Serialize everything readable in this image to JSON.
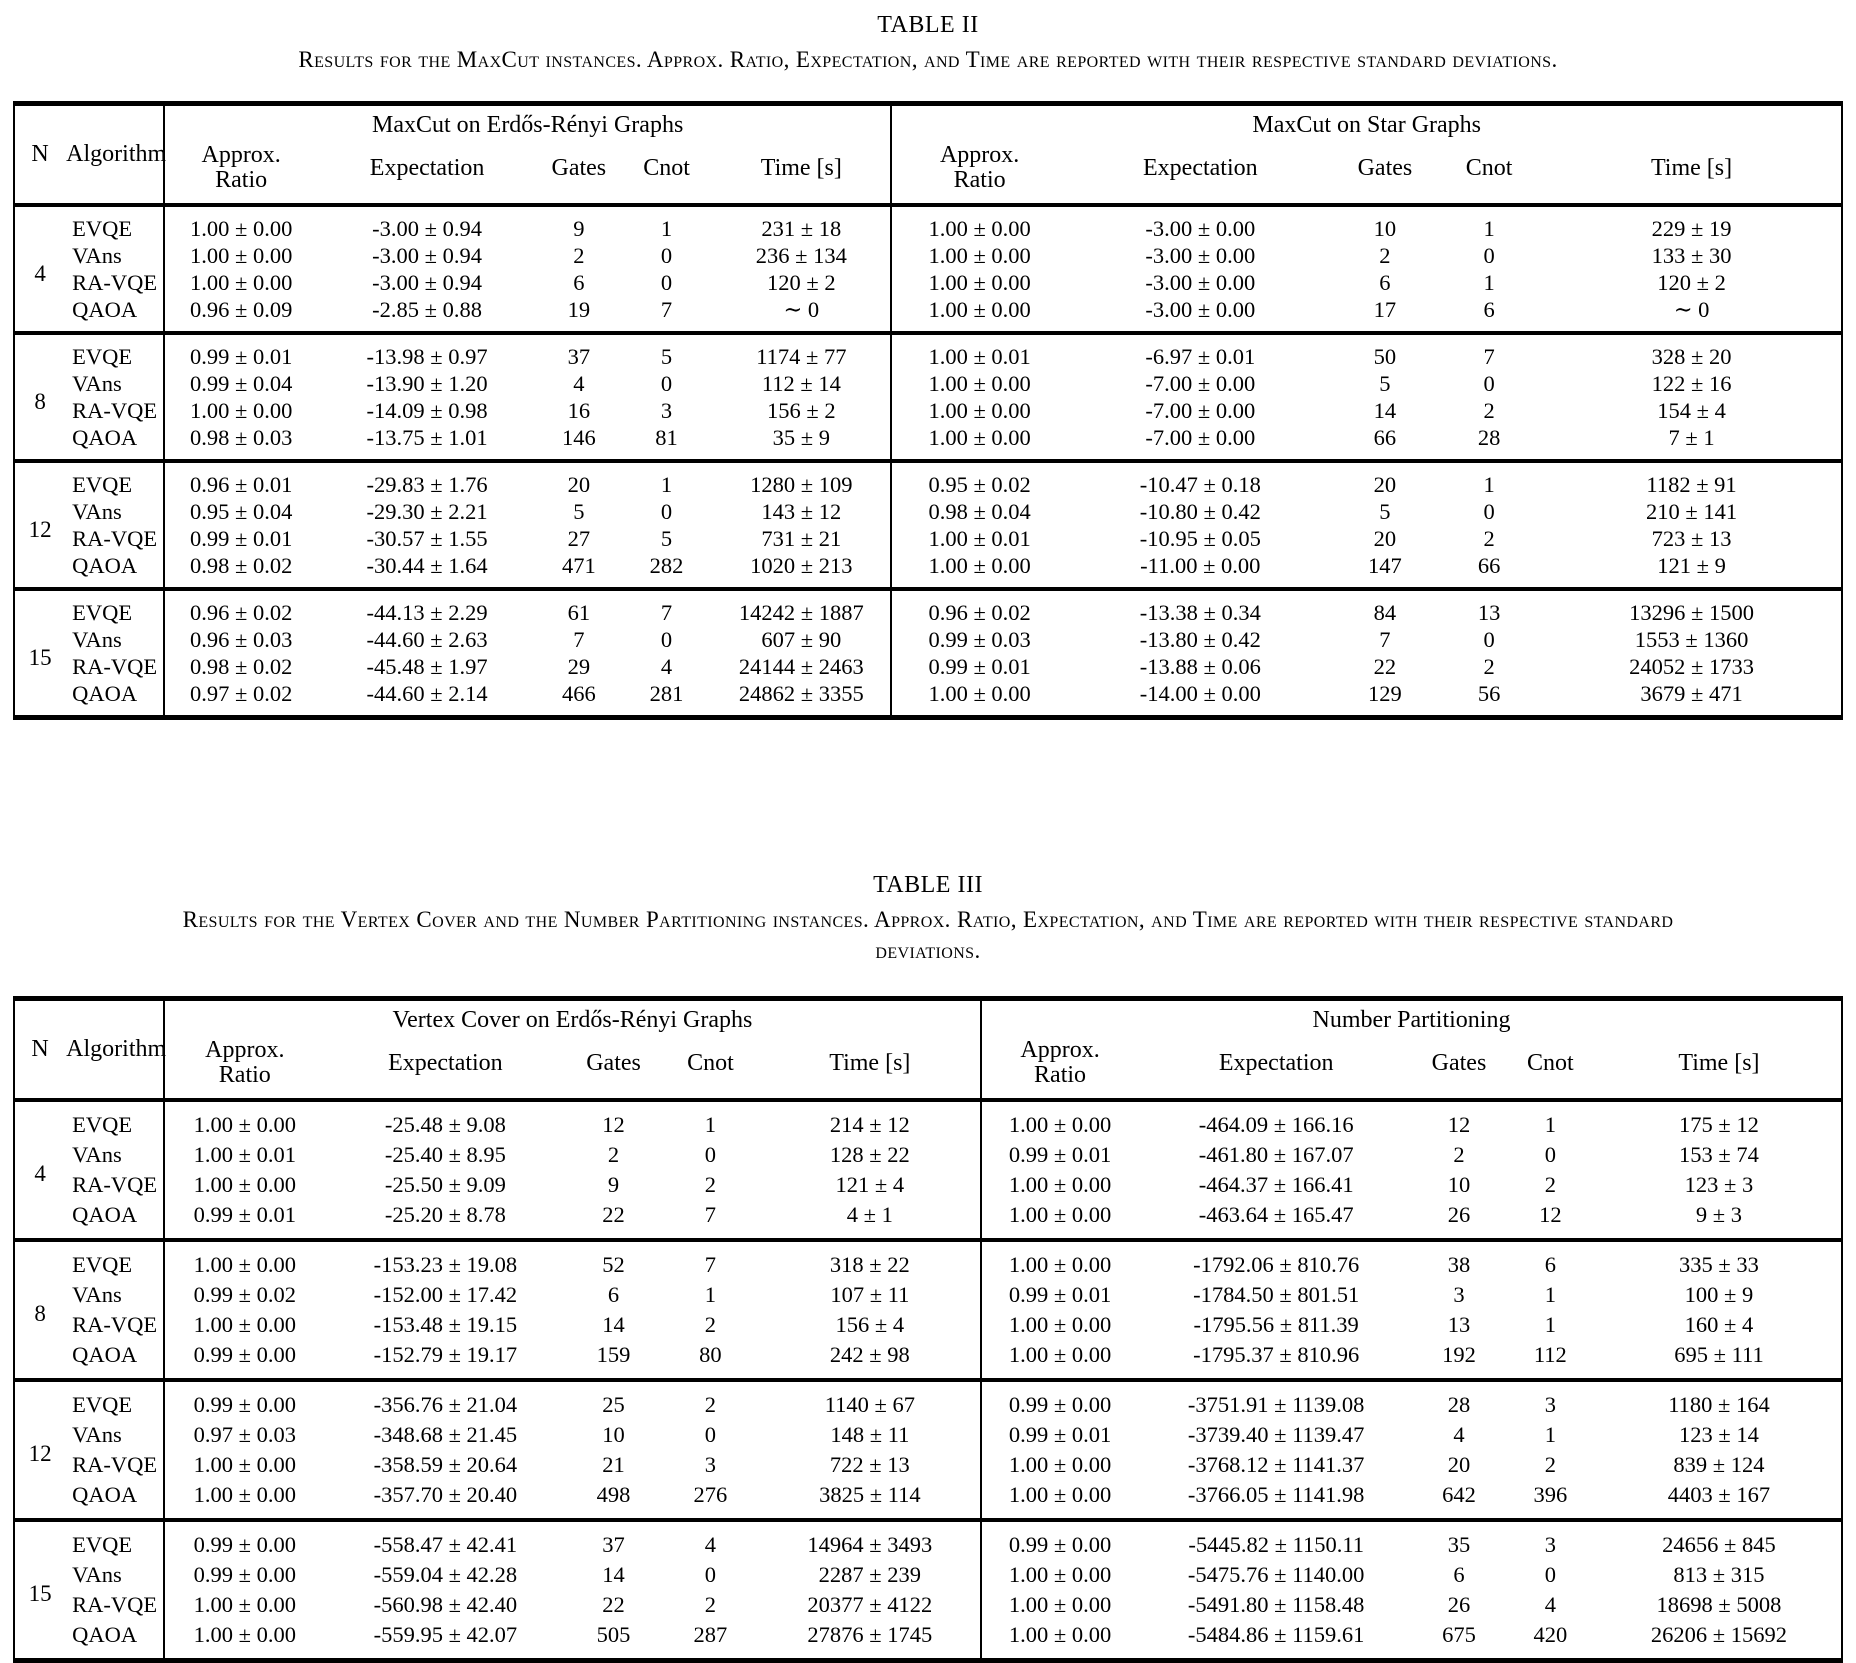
{
  "page": {
    "background": "#ffffff",
    "text_color": "#000000"
  },
  "tables": [
    {
      "label": "TABLE II",
      "caption": "Results for the MaxCut instances. Approx. Ratio, Expectation, and Time are reported with their respective standard deviations.",
      "headers": {
        "n": "N",
        "algorithm": "Algorithm",
        "approx_line1": "Approx.",
        "approx_line2": "Ratio",
        "expectation": "Expectation",
        "gates": "Gates",
        "cnot": "Cnot",
        "time": "Time [s]"
      },
      "groups": [
        {
          "title": "MaxCut on Erdős-Rényi Graphs"
        },
        {
          "title": "MaxCut on Star Graphs"
        }
      ],
      "blocks": [
        {
          "n": "4",
          "rows": [
            {
              "algorithm": "EVQE",
              "values": [
                "1.00 ± 0.00",
                "-3.00 ± 0.94",
                "9",
                "1",
                "231 ± 18",
                "1.00 ± 0.00",
                "-3.00 ± 0.00",
                "10",
                "1",
                "229 ± 19"
              ]
            },
            {
              "algorithm": "VAns",
              "values": [
                "1.00 ± 0.00",
                "-3.00 ± 0.94",
                "2",
                "0",
                "236 ± 134",
                "1.00 ± 0.00",
                "-3.00 ± 0.00",
                "2",
                "0",
                "133 ± 30"
              ]
            },
            {
              "algorithm": "RA-VQE",
              "values": [
                "1.00 ± 0.00",
                "-3.00 ± 0.94",
                "6",
                "0",
                "120 ± 2",
                "1.00 ± 0.00",
                "-3.00 ± 0.00",
                "6",
                "1",
                "120 ± 2"
              ]
            },
            {
              "algorithm": "QAOA",
              "values": [
                "0.96 ± 0.09",
                "-2.85 ± 0.88",
                "19",
                "7",
                "∼ 0",
                "1.00 ± 0.00",
                "-3.00 ± 0.00",
                "17",
                "6",
                "∼ 0"
              ]
            }
          ]
        },
        {
          "n": "8",
          "rows": [
            {
              "algorithm": "EVQE",
              "values": [
                "0.99 ± 0.01",
                "-13.98 ± 0.97",
                "37",
                "5",
                "1174 ± 77",
                "1.00 ± 0.01",
                "-6.97 ± 0.01",
                "50",
                "7",
                "328 ± 20"
              ]
            },
            {
              "algorithm": "VAns",
              "values": [
                "0.99 ± 0.04",
                "-13.90 ± 1.20",
                "4",
                "0",
                "112 ± 14",
                "1.00 ± 0.00",
                "-7.00 ± 0.00",
                "5",
                "0",
                "122 ± 16"
              ]
            },
            {
              "algorithm": "RA-VQE",
              "values": [
                "1.00 ± 0.00",
                "-14.09 ± 0.98",
                "16",
                "3",
                "156 ± 2",
                "1.00 ± 0.00",
                "-7.00 ± 0.00",
                "14",
                "2",
                "154 ± 4"
              ]
            },
            {
              "algorithm": "QAOA",
              "values": [
                "0.98 ± 0.03",
                "-13.75 ± 1.01",
                "146",
                "81",
                "35 ± 9",
                "1.00 ± 0.00",
                "-7.00 ± 0.00",
                "66",
                "28",
                "7 ± 1"
              ]
            }
          ]
        },
        {
          "n": "12",
          "rows": [
            {
              "algorithm": "EVQE",
              "values": [
                "0.96 ± 0.01",
                "-29.83 ± 1.76",
                "20",
                "1",
                "1280 ± 109",
                "0.95 ± 0.02",
                "-10.47 ± 0.18",
                "20",
                "1",
                "1182 ± 91"
              ]
            },
            {
              "algorithm": "VAns",
              "values": [
                "0.95 ± 0.04",
                "-29.30 ± 2.21",
                "5",
                "0",
                "143 ± 12",
                "0.98 ± 0.04",
                "-10.80 ± 0.42",
                "5",
                "0",
                "210 ± 141"
              ]
            },
            {
              "algorithm": "RA-VQE",
              "values": [
                "0.99 ± 0.01",
                "-30.57 ± 1.55",
                "27",
                "5",
                "731 ± 21",
                "1.00 ± 0.01",
                "-10.95 ± 0.05",
                "20",
                "2",
                "723 ± 13"
              ]
            },
            {
              "algorithm": "QAOA",
              "values": [
                "0.98 ± 0.02",
                "-30.44 ± 1.64",
                "471",
                "282",
                "1020 ± 213",
                "1.00 ± 0.00",
                "-11.00 ± 0.00",
                "147",
                "66",
                "121 ± 9"
              ]
            }
          ]
        },
        {
          "n": "15",
          "rows": [
            {
              "algorithm": "EVQE",
              "values": [
                "0.96 ± 0.02",
                "-44.13 ± 2.29",
                "61",
                "7",
                "14242 ± 1887",
                "0.96 ± 0.02",
                "-13.38 ± 0.34",
                "84",
                "13",
                "13296 ± 1500"
              ]
            },
            {
              "algorithm": "VAns",
              "values": [
                "0.96 ± 0.03",
                "-44.60 ± 2.63",
                "7",
                "0",
                "607 ± 90",
                "0.99 ± 0.03",
                "-13.80 ± 0.42",
                "7",
                "0",
                "1553 ± 1360"
              ]
            },
            {
              "algorithm": "RA-VQE",
              "values": [
                "0.98 ± 0.02",
                "-45.48 ± 1.97",
                "29",
                "4",
                "24144 ± 2463",
                "0.99 ± 0.01",
                "-13.88 ± 0.06",
                "22",
                "2",
                "24052 ± 1733"
              ]
            },
            {
              "algorithm": "QAOA",
              "values": [
                "0.97 ± 0.02",
                "-44.60 ± 2.14",
                "466",
                "281",
                "24862 ± 3355",
                "1.00 ± 0.00",
                "-14.00 ± 0.00",
                "129",
                "56",
                "3679 ± 471"
              ]
            }
          ]
        }
      ]
    },
    {
      "label": "TABLE III",
      "caption": "Results for the Vertex Cover and the Number Partitioning instances. Approx. Ratio, Expectation, and Time are reported with their respective standard deviations.",
      "headers": {
        "n": "N",
        "algorithm": "Algorithm",
        "approx_line1": "Approx.",
        "approx_line2": "Ratio",
        "expectation": "Expectation",
        "gates": "Gates",
        "cnot": "Cnot",
        "time": "Time [s]"
      },
      "groups": [
        {
          "title": "Vertex Cover on Erdős-Rényi Graphs"
        },
        {
          "title": "Number Partitioning"
        }
      ],
      "blocks": [
        {
          "n": "4",
          "rows": [
            {
              "algorithm": "EVQE",
              "values": [
                "1.00 ± 0.00",
                "-25.48 ± 9.08",
                "12",
                "1",
                "214 ± 12",
                "1.00 ± 0.00",
                "-464.09 ± 166.16",
                "12",
                "1",
                "175 ± 12"
              ]
            },
            {
              "algorithm": "VAns",
              "values": [
                "1.00 ± 0.01",
                "-25.40 ± 8.95",
                "2",
                "0",
                "128 ± 22",
                "0.99 ± 0.01",
                "-461.80 ± 167.07",
                "2",
                "0",
                "153 ± 74"
              ]
            },
            {
              "algorithm": "RA-VQE",
              "values": [
                "1.00 ± 0.00",
                "-25.50 ± 9.09",
                "9",
                "2",
                "121 ± 4",
                "1.00 ± 0.00",
                "-464.37 ± 166.41",
                "10",
                "2",
                "123 ± 3"
              ]
            },
            {
              "algorithm": "QAOA",
              "values": [
                "0.99 ± 0.01",
                "-25.20 ± 8.78",
                "22",
                "7",
                "4 ± 1",
                "1.00 ± 0.00",
                "-463.64 ± 165.47",
                "26",
                "12",
                "9 ± 3"
              ]
            }
          ]
        },
        {
          "n": "8",
          "rows": [
            {
              "algorithm": "EVQE",
              "values": [
                "1.00 ± 0.00",
                "-153.23 ± 19.08",
                "52",
                "7",
                "318 ± 22",
                "1.00 ± 0.00",
                "-1792.06 ± 810.76",
                "38",
                "6",
                "335 ± 33"
              ]
            },
            {
              "algorithm": "VAns",
              "values": [
                "0.99 ± 0.02",
                "-152.00 ± 17.42",
                "6",
                "1",
                "107 ± 11",
                "0.99 ± 0.01",
                "-1784.50 ± 801.51",
                "3",
                "1",
                "100 ± 9"
              ]
            },
            {
              "algorithm": "RA-VQE",
              "values": [
                "1.00 ± 0.00",
                "-153.48 ± 19.15",
                "14",
                "2",
                "156 ± 4",
                "1.00 ± 0.00",
                "-1795.56 ± 811.39",
                "13",
                "1",
                "160 ± 4"
              ]
            },
            {
              "algorithm": "QAOA",
              "values": [
                "0.99 ± 0.00",
                "-152.79 ± 19.17",
                "159",
                "80",
                "242 ± 98",
                "1.00 ± 0.00",
                "-1795.37 ± 810.96",
                "192",
                "112",
                "695 ± 111"
              ]
            }
          ]
        },
        {
          "n": "12",
          "rows": [
            {
              "algorithm": "EVQE",
              "values": [
                "0.99 ± 0.00",
                "-356.76 ± 21.04",
                "25",
                "2",
                "1140 ± 67",
                "0.99 ± 0.00",
                "-3751.91 ± 1139.08",
                "28",
                "3",
                "1180 ± 164"
              ]
            },
            {
              "algorithm": "VAns",
              "values": [
                "0.97 ± 0.03",
                "-348.68 ± 21.45",
                "10",
                "0",
                "148 ± 11",
                "0.99 ± 0.01",
                "-3739.40 ± 1139.47",
                "4",
                "1",
                "123 ± 14"
              ]
            },
            {
              "algorithm": "RA-VQE",
              "values": [
                "1.00 ± 0.00",
                "-358.59 ± 20.64",
                "21",
                "3",
                "722 ± 13",
                "1.00 ± 0.00",
                "-3768.12 ± 1141.37",
                "20",
                "2",
                "839 ± 124"
              ]
            },
            {
              "algorithm": "QAOA",
              "values": [
                "1.00 ± 0.00",
                "-357.70 ± 20.40",
                "498",
                "276",
                "3825 ± 114",
                "1.00 ± 0.00",
                "-3766.05 ± 1141.98",
                "642",
                "396",
                "4403 ± 167"
              ]
            }
          ]
        },
        {
          "n": "15",
          "rows": [
            {
              "algorithm": "EVQE",
              "values": [
                "0.99 ± 0.00",
                "-558.47 ± 42.41",
                "37",
                "4",
                "14964 ± 3493",
                "0.99 ± 0.00",
                "-5445.82 ± 1150.11",
                "35",
                "3",
                "24656 ± 845"
              ]
            },
            {
              "algorithm": "VAns",
              "values": [
                "0.99 ± 0.00",
                "-559.04 ± 42.28",
                "14",
                "0",
                "2287 ± 239",
                "1.00 ± 0.00",
                "-5475.76 ± 1140.00",
                "6",
                "0",
                "813 ± 315"
              ]
            },
            {
              "algorithm": "RA-VQE",
              "values": [
                "1.00 ± 0.00",
                "-560.98 ± 42.40",
                "22",
                "2",
                "20377 ± 4122",
                "1.00 ± 0.00",
                "-5491.80 ± 1158.48",
                "26",
                "4",
                "18698 ± 5008"
              ]
            },
            {
              "algorithm": "QAOA",
              "values": [
                "1.00 ± 0.00",
                "-559.95 ± 42.07",
                "505",
                "287",
                "27876 ± 1745",
                "1.00 ± 0.00",
                "-5484.86 ± 1159.61",
                "675",
                "420",
                "26206 ± 15692"
              ]
            }
          ]
        }
      ]
    }
  ]
}
